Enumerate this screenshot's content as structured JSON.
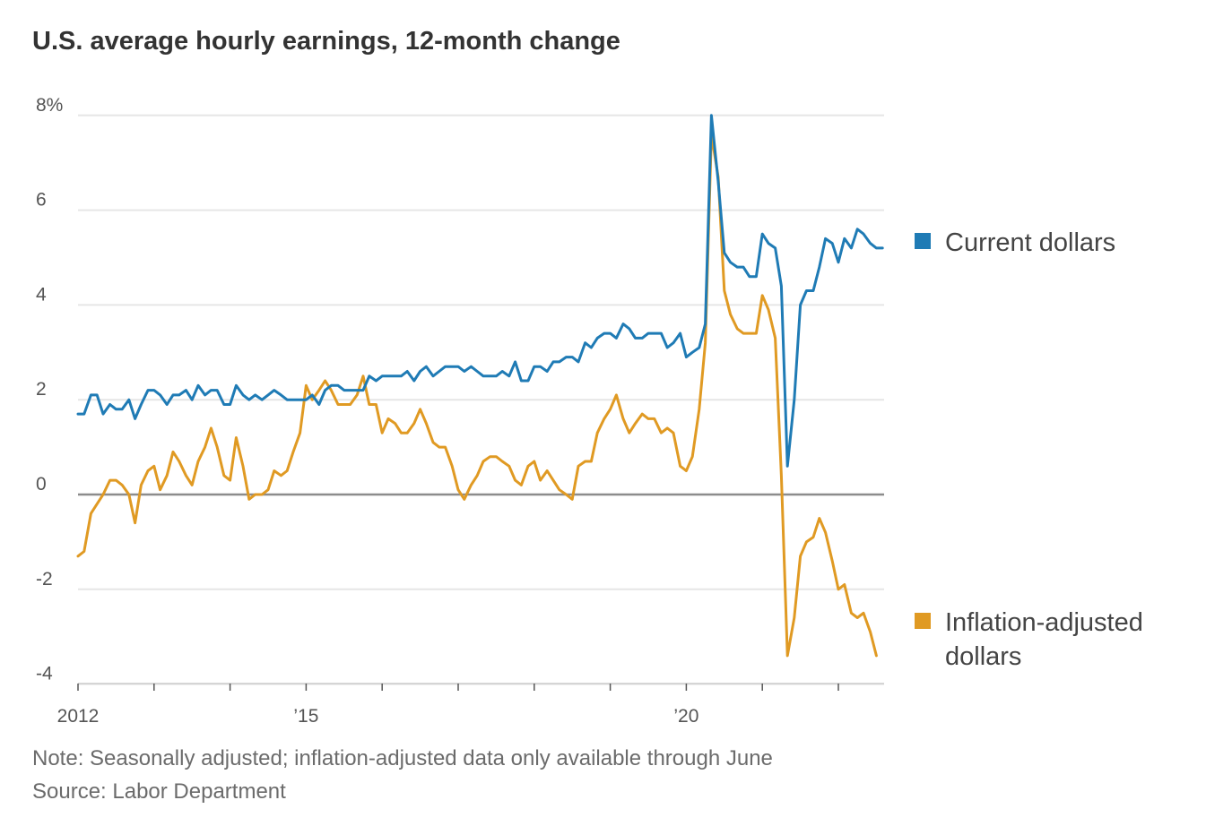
{
  "title": "U.S. average hourly earnings, 12-month change",
  "note": "Note: Seasonally adjusted; inflation-adjusted data only available through June",
  "source": "Source: Labor Department",
  "colors": {
    "current": "#1f7bb5",
    "real": "#e09a23",
    "grid": "#e6e6e6",
    "zero": "#8c8c8c",
    "text": "#333333"
  },
  "chart_data": {
    "type": "line",
    "title": "U.S. average hourly earnings, 12-month change",
    "xlabel": "",
    "ylabel": "",
    "ylim": [
      -4,
      8
    ],
    "xlim": [
      2012,
      2022.6
    ],
    "y_ticks": [
      {
        "value": 8,
        "label": "8%"
      },
      {
        "value": 6,
        "label": "6"
      },
      {
        "value": 4,
        "label": "4"
      },
      {
        "value": 2,
        "label": "2"
      },
      {
        "value": 0,
        "label": "0"
      },
      {
        "value": -2,
        "label": "-2"
      },
      {
        "value": -4,
        "label": "-4"
      }
    ],
    "x_ticks": [
      2012,
      2013,
      2014,
      2015,
      2016,
      2017,
      2018,
      2019,
      2020,
      2021,
      2022
    ],
    "x_tick_labels": [
      {
        "value": 2012,
        "label": "2012"
      },
      {
        "value": 2015,
        "label": "’15"
      },
      {
        "value": 2020,
        "label": "’20"
      }
    ],
    "series": [
      {
        "name": "Current dollars",
        "color": "#1f7bb5",
        "points": [
          [
            2012.0,
            1.7
          ],
          [
            2012.08,
            1.7
          ],
          [
            2012.17,
            2.1
          ],
          [
            2012.25,
            2.1
          ],
          [
            2012.33,
            1.7
          ],
          [
            2012.42,
            1.9
          ],
          [
            2012.5,
            1.8
          ],
          [
            2012.58,
            1.8
          ],
          [
            2012.67,
            2.0
          ],
          [
            2012.75,
            1.6
          ],
          [
            2012.83,
            1.9
          ],
          [
            2012.92,
            2.2
          ],
          [
            2013.0,
            2.2
          ],
          [
            2013.08,
            2.1
          ],
          [
            2013.17,
            1.9
          ],
          [
            2013.25,
            2.1
          ],
          [
            2013.33,
            2.1
          ],
          [
            2013.42,
            2.2
          ],
          [
            2013.5,
            2.0
          ],
          [
            2013.58,
            2.3
          ],
          [
            2013.67,
            2.1
          ],
          [
            2013.75,
            2.2
          ],
          [
            2013.83,
            2.2
          ],
          [
            2013.92,
            1.9
          ],
          [
            2014.0,
            1.9
          ],
          [
            2014.08,
            2.3
          ],
          [
            2014.17,
            2.1
          ],
          [
            2014.25,
            2.0
          ],
          [
            2014.33,
            2.1
          ],
          [
            2014.42,
            2.0
          ],
          [
            2014.5,
            2.1
          ],
          [
            2014.58,
            2.2
          ],
          [
            2014.67,
            2.1
          ],
          [
            2014.75,
            2.0
          ],
          [
            2014.83,
            2.0
          ],
          [
            2014.92,
            2.0
          ],
          [
            2015.0,
            2.0
          ],
          [
            2015.08,
            2.1
          ],
          [
            2015.17,
            1.9
          ],
          [
            2015.25,
            2.2
          ],
          [
            2015.33,
            2.3
          ],
          [
            2015.42,
            2.3
          ],
          [
            2015.5,
            2.2
          ],
          [
            2015.58,
            2.2
          ],
          [
            2015.67,
            2.2
          ],
          [
            2015.75,
            2.2
          ],
          [
            2015.83,
            2.5
          ],
          [
            2015.92,
            2.4
          ],
          [
            2016.0,
            2.5
          ],
          [
            2016.08,
            2.5
          ],
          [
            2016.17,
            2.5
          ],
          [
            2016.25,
            2.5
          ],
          [
            2016.33,
            2.6
          ],
          [
            2016.42,
            2.4
          ],
          [
            2016.5,
            2.6
          ],
          [
            2016.58,
            2.7
          ],
          [
            2016.67,
            2.5
          ],
          [
            2016.75,
            2.6
          ],
          [
            2016.83,
            2.7
          ],
          [
            2016.92,
            2.7
          ],
          [
            2017.0,
            2.7
          ],
          [
            2017.08,
            2.6
          ],
          [
            2017.17,
            2.7
          ],
          [
            2017.25,
            2.6
          ],
          [
            2017.33,
            2.5
          ],
          [
            2017.42,
            2.5
          ],
          [
            2017.5,
            2.5
          ],
          [
            2017.58,
            2.6
          ],
          [
            2017.67,
            2.5
          ],
          [
            2017.75,
            2.8
          ],
          [
            2017.83,
            2.4
          ],
          [
            2017.92,
            2.4
          ],
          [
            2018.0,
            2.7
          ],
          [
            2018.08,
            2.7
          ],
          [
            2018.17,
            2.6
          ],
          [
            2018.25,
            2.8
          ],
          [
            2018.33,
            2.8
          ],
          [
            2018.42,
            2.9
          ],
          [
            2018.5,
            2.9
          ],
          [
            2018.58,
            2.8
          ],
          [
            2018.67,
            3.2
          ],
          [
            2018.75,
            3.1
          ],
          [
            2018.83,
            3.3
          ],
          [
            2018.92,
            3.4
          ],
          [
            2019.0,
            3.4
          ],
          [
            2019.08,
            3.3
          ],
          [
            2019.17,
            3.6
          ],
          [
            2019.25,
            3.5
          ],
          [
            2019.33,
            3.3
          ],
          [
            2019.42,
            3.3
          ],
          [
            2019.5,
            3.4
          ],
          [
            2019.58,
            3.4
          ],
          [
            2019.67,
            3.4
          ],
          [
            2019.75,
            3.1
          ],
          [
            2019.83,
            3.2
          ],
          [
            2019.92,
            3.4
          ],
          [
            2020.0,
            2.9
          ],
          [
            2020.08,
            3.0
          ],
          [
            2020.17,
            3.1
          ],
          [
            2020.25,
            3.6
          ],
          [
            2020.33,
            8.0
          ],
          [
            2020.42,
            6.6
          ],
          [
            2020.5,
            5.1
          ],
          [
            2020.58,
            4.9
          ],
          [
            2020.67,
            4.8
          ],
          [
            2020.75,
            4.8
          ],
          [
            2020.83,
            4.6
          ],
          [
            2020.92,
            4.6
          ],
          [
            2021.0,
            5.5
          ],
          [
            2021.08,
            5.3
          ],
          [
            2021.17,
            5.2
          ],
          [
            2021.25,
            4.4
          ],
          [
            2021.33,
            0.6
          ],
          [
            2021.42,
            2.0
          ],
          [
            2021.5,
            4.0
          ],
          [
            2021.58,
            4.3
          ],
          [
            2021.67,
            4.3
          ],
          [
            2021.75,
            4.8
          ],
          [
            2021.83,
            5.4
          ],
          [
            2021.92,
            5.3
          ],
          [
            2022.0,
            4.9
          ],
          [
            2022.08,
            5.4
          ],
          [
            2022.17,
            5.2
          ],
          [
            2022.25,
            5.6
          ],
          [
            2022.33,
            5.5
          ],
          [
            2022.42,
            5.3
          ],
          [
            2022.5,
            5.2
          ],
          [
            2022.58,
            5.2
          ]
        ]
      },
      {
        "name": "Inflation-adjusted dollars",
        "color": "#e09a23",
        "points": [
          [
            2012.0,
            -1.3
          ],
          [
            2012.08,
            -1.2
          ],
          [
            2012.17,
            -0.4
          ],
          [
            2012.25,
            -0.2
          ],
          [
            2012.33,
            0.0
          ],
          [
            2012.42,
            0.3
          ],
          [
            2012.5,
            0.3
          ],
          [
            2012.58,
            0.2
          ],
          [
            2012.67,
            0.0
          ],
          [
            2012.75,
            -0.6
          ],
          [
            2012.83,
            0.2
          ],
          [
            2012.92,
            0.5
          ],
          [
            2013.0,
            0.6
          ],
          [
            2013.08,
            0.1
          ],
          [
            2013.17,
            0.4
          ],
          [
            2013.25,
            0.9
          ],
          [
            2013.33,
            0.7
          ],
          [
            2013.42,
            0.4
          ],
          [
            2013.5,
            0.2
          ],
          [
            2013.58,
            0.7
          ],
          [
            2013.67,
            1.0
          ],
          [
            2013.75,
            1.4
          ],
          [
            2013.83,
            1.0
          ],
          [
            2013.92,
            0.4
          ],
          [
            2014.0,
            0.3
          ],
          [
            2014.08,
            1.2
          ],
          [
            2014.17,
            0.6
          ],
          [
            2014.25,
            -0.1
          ],
          [
            2014.33,
            0.0
          ],
          [
            2014.42,
            0.0
          ],
          [
            2014.5,
            0.1
          ],
          [
            2014.58,
            0.5
          ],
          [
            2014.67,
            0.4
          ],
          [
            2014.75,
            0.5
          ],
          [
            2014.83,
            0.9
          ],
          [
            2014.92,
            1.3
          ],
          [
            2015.0,
            2.3
          ],
          [
            2015.08,
            2.0
          ],
          [
            2015.17,
            2.2
          ],
          [
            2015.25,
            2.4
          ],
          [
            2015.33,
            2.2
          ],
          [
            2015.42,
            1.9
          ],
          [
            2015.5,
            1.9
          ],
          [
            2015.58,
            1.9
          ],
          [
            2015.67,
            2.1
          ],
          [
            2015.75,
            2.5
          ],
          [
            2015.83,
            1.9
          ],
          [
            2015.92,
            1.9
          ],
          [
            2016.0,
            1.3
          ],
          [
            2016.08,
            1.6
          ],
          [
            2016.17,
            1.5
          ],
          [
            2016.25,
            1.3
          ],
          [
            2016.33,
            1.3
          ],
          [
            2016.42,
            1.5
          ],
          [
            2016.5,
            1.8
          ],
          [
            2016.58,
            1.5
          ],
          [
            2016.67,
            1.1
          ],
          [
            2016.75,
            1.0
          ],
          [
            2016.83,
            1.0
          ],
          [
            2016.92,
            0.6
          ],
          [
            2017.0,
            0.1
          ],
          [
            2017.08,
            -0.1
          ],
          [
            2017.17,
            0.2
          ],
          [
            2017.25,
            0.4
          ],
          [
            2017.33,
            0.7
          ],
          [
            2017.42,
            0.8
          ],
          [
            2017.5,
            0.8
          ],
          [
            2017.58,
            0.7
          ],
          [
            2017.67,
            0.6
          ],
          [
            2017.75,
            0.3
          ],
          [
            2017.83,
            0.2
          ],
          [
            2017.92,
            0.6
          ],
          [
            2018.0,
            0.7
          ],
          [
            2018.08,
            0.3
          ],
          [
            2018.17,
            0.5
          ],
          [
            2018.25,
            0.3
          ],
          [
            2018.33,
            0.1
          ],
          [
            2018.42,
            0.0
          ],
          [
            2018.5,
            -0.1
          ],
          [
            2018.58,
            0.6
          ],
          [
            2018.67,
            0.7
          ],
          [
            2018.75,
            0.7
          ],
          [
            2018.83,
            1.3
          ],
          [
            2018.92,
            1.6
          ],
          [
            2019.0,
            1.8
          ],
          [
            2019.08,
            2.1
          ],
          [
            2019.17,
            1.6
          ],
          [
            2019.25,
            1.3
          ],
          [
            2019.33,
            1.5
          ],
          [
            2019.42,
            1.7
          ],
          [
            2019.5,
            1.6
          ],
          [
            2019.58,
            1.6
          ],
          [
            2019.67,
            1.3
          ],
          [
            2019.75,
            1.4
          ],
          [
            2019.83,
            1.3
          ],
          [
            2019.92,
            0.6
          ],
          [
            2020.0,
            0.5
          ],
          [
            2020.08,
            0.8
          ],
          [
            2020.17,
            1.8
          ],
          [
            2020.25,
            3.2
          ],
          [
            2020.33,
            7.6
          ],
          [
            2020.42,
            6.7
          ],
          [
            2020.5,
            4.3
          ],
          [
            2020.58,
            3.8
          ],
          [
            2020.67,
            3.5
          ],
          [
            2020.75,
            3.4
          ],
          [
            2020.83,
            3.4
          ],
          [
            2020.92,
            3.4
          ],
          [
            2021.0,
            4.2
          ],
          [
            2021.08,
            3.9
          ],
          [
            2021.17,
            3.3
          ],
          [
            2021.25,
            0.4
          ],
          [
            2021.33,
            -3.4
          ],
          [
            2021.42,
            -2.6
          ],
          [
            2021.5,
            -1.3
          ],
          [
            2021.58,
            -1.0
          ],
          [
            2021.67,
            -0.9
          ],
          [
            2021.75,
            -0.5
          ],
          [
            2021.83,
            -0.8
          ],
          [
            2021.92,
            -1.4
          ],
          [
            2022.0,
            -2.0
          ],
          [
            2022.08,
            -1.9
          ],
          [
            2022.17,
            -2.5
          ],
          [
            2022.25,
            -2.6
          ],
          [
            2022.33,
            -2.5
          ],
          [
            2022.42,
            -2.9
          ],
          [
            2022.5,
            -3.4
          ]
        ]
      }
    ],
    "legend": [
      {
        "name": "Current dollars",
        "color": "#1f7bb5"
      },
      {
        "name": "Inflation-adjusted dollars",
        "color": "#e09a23"
      }
    ],
    "legend_placement": "right"
  }
}
